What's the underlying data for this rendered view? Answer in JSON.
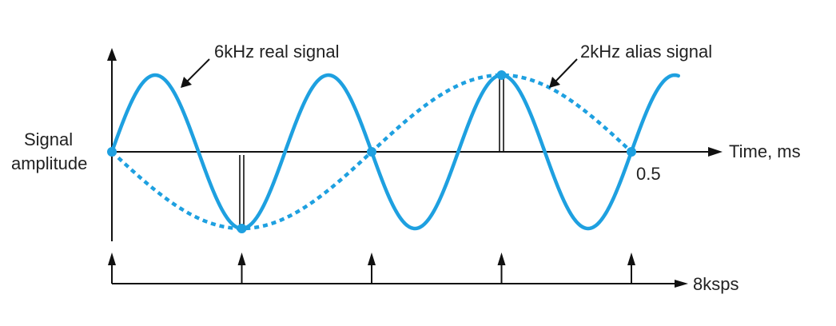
{
  "colors": {
    "real_signal": "#1ea0e0",
    "alias_signal": "#1ea0e0",
    "axis": "#111111",
    "text": "#222222"
  },
  "labels": {
    "real_signal": "6kHz real signal",
    "alias_signal": "2kHz alias signal",
    "y_axis_line1": "Signal",
    "y_axis_line2": "amplitude",
    "x_axis": "Time, ms",
    "x_tick": "0.5",
    "sample_rate": "8ksps"
  },
  "signals": {
    "real_frequency_khz": 6,
    "alias_frequency_khz": 2,
    "sample_rate_ksps": 8,
    "time_end_ms": 0.5,
    "sample_times_ms": [
      0,
      0.125,
      0.25,
      0.375,
      0.5
    ]
  }
}
